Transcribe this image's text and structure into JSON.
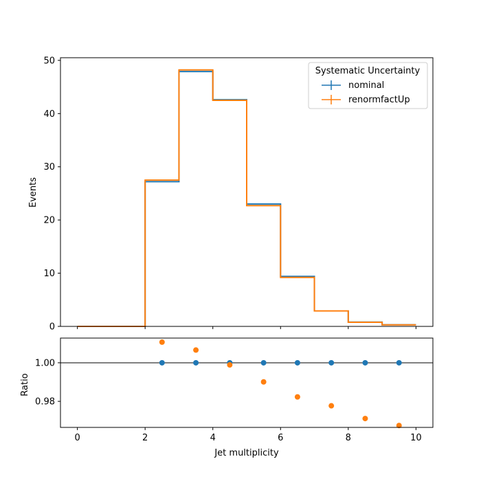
{
  "chart_data": [
    {
      "type": "step",
      "panel": "main",
      "title": "",
      "xlabel": "",
      "ylabel": "Events",
      "xlim": [
        -0.5,
        10.5
      ],
      "ylim": [
        0,
        50.5
      ],
      "bin_edges": [
        0,
        1,
        2,
        3,
        4,
        5,
        6,
        7,
        8,
        9,
        10
      ],
      "xticks": [
        0,
        2,
        4,
        6,
        8,
        10
      ],
      "yticks": [
        0,
        10,
        20,
        30,
        40,
        50
      ],
      "series": [
        {
          "name": "nominal",
          "color": "#1f77b4",
          "values": [
            0,
            0,
            27.2,
            47.9,
            42.6,
            23.0,
            9.4,
            2.9,
            0.8,
            0.3
          ]
        },
        {
          "name": "renormfactUp",
          "color": "#ff7f0e",
          "values": [
            0,
            0,
            27.5,
            48.2,
            42.5,
            22.7,
            9.2,
            2.9,
            0.78,
            0.29
          ]
        }
      ],
      "legend": {
        "title": "Systematic Uncertainty",
        "placement": "top-right"
      },
      "grid": false
    },
    {
      "type": "scatter",
      "panel": "ratio",
      "xlabel": "Jet multiplicity",
      "ylabel": "Ratio",
      "xlim": [
        -0.5,
        10.5
      ],
      "ylim": [
        0.9665,
        1.0128
      ],
      "xticks": [
        0,
        2,
        4,
        6,
        8,
        10
      ],
      "yticks": [
        0.98,
        1.0
      ],
      "ytick_labels": [
        "0.98",
        "1.00"
      ],
      "reference_line": 1.0,
      "series": [
        {
          "name": "nominal",
          "color": "#1f77b4",
          "x": [
            2.5,
            3.5,
            4.5,
            5.5,
            6.5,
            7.5,
            8.5,
            9.5
          ],
          "y": [
            1.0,
            1.0,
            1.0,
            1.0,
            1.0,
            1.0,
            1.0,
            1.0
          ]
        },
        {
          "name": "renormfactUp",
          "color": "#ff7f0e",
          "x": [
            2.5,
            3.5,
            4.5,
            5.5,
            6.5,
            7.5,
            8.5,
            9.5
          ],
          "y": [
            1.0107,
            1.0066,
            0.9989,
            0.9901,
            0.9823,
            0.9777,
            0.9711,
            0.9675
          ]
        }
      ],
      "grid": false
    }
  ]
}
